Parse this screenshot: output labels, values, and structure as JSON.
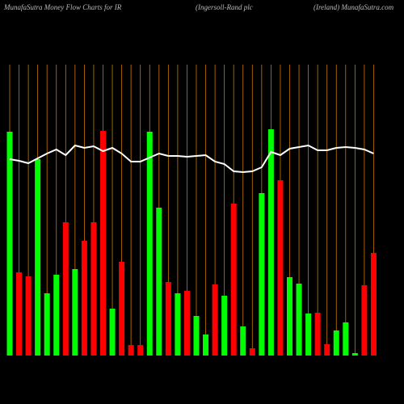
{
  "chart_data": {
    "type": "bar",
    "title": "MunafaSutra  Money Flow  Charts for IR",
    "subtitle": "(Ingersoll-Rand plc",
    "source": "(Ireland) MunafaSutra.com",
    "values": [
      277,
      103,
      98,
      243,
      77,
      100,
      165,
      107,
      142,
      165,
      278,
      58,
      116,
      13,
      13,
      277,
      183,
      91,
      77,
      80,
      49,
      26,
      88,
      74,
      188,
      36,
      9,
      201,
      280,
      217,
      97,
      89,
      52,
      53,
      14,
      31,
      41,
      3,
      87,
      127
    ],
    "colors": [
      "#00ff00",
      "#ff0000",
      "#ff0000",
      "#00ff00",
      "#00ff00",
      "#00ff00",
      "#ff0000",
      "#00ff00",
      "#ff0000",
      "#ff0000",
      "#ff0000",
      "#00ff00",
      "#ff0000",
      "#ff0000",
      "#ff0000",
      "#00ff00",
      "#00ff00",
      "#ff0000",
      "#00ff00",
      "#ff0000",
      "#00ff00",
      "#00ff00",
      "#ff0000",
      "#00ff00",
      "#ff0000",
      "#00ff00",
      "#ff0000",
      "#00ff00",
      "#00ff00",
      "#ff0000",
      "#00ff00",
      "#00ff00",
      "#00ff00",
      "#ff0000",
      "#ff0000",
      "#00ff00",
      "#00ff00",
      "#00ff00",
      "#ff0000",
      "#ff0000"
    ],
    "line": [
      243,
      241,
      238,
      244,
      250,
      255,
      248,
      260,
      257,
      259,
      253,
      257,
      250,
      240,
      240,
      245,
      250,
      247,
      247,
      246,
      247,
      248,
      240,
      237,
      228,
      227,
      228,
      233,
      252,
      248,
      256,
      258,
      260,
      254,
      254,
      257,
      258,
      257,
      255,
      250
    ],
    "line_color": "#ffffff",
    "grid_color": "#c87800",
    "ylim": [
      0,
      360
    ]
  }
}
